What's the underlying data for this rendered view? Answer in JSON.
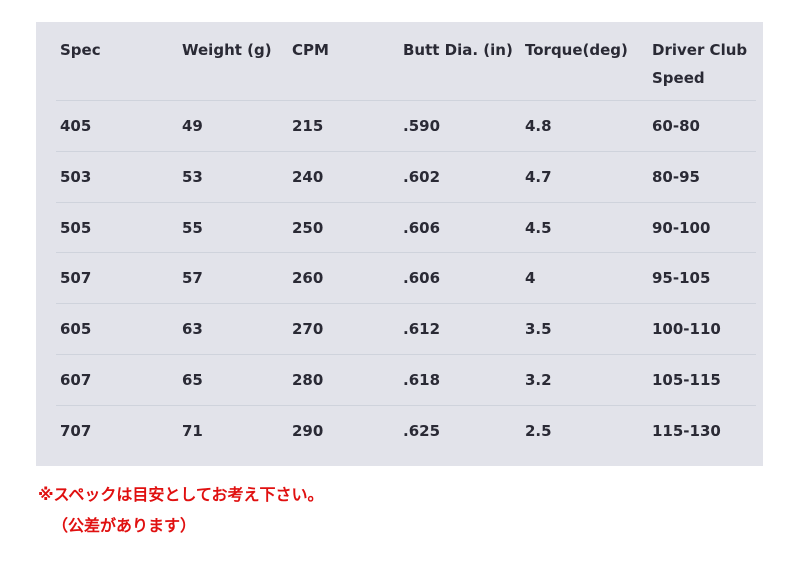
{
  "table": {
    "headers": [
      "Spec",
      "Weight (g)",
      "CPM",
      "Butt Dia. (in)",
      "Torque(deg)",
      "Driver Club Speed"
    ],
    "rows": [
      [
        "405",
        "49",
        "215",
        ".590",
        "4.8",
        "60-80"
      ],
      [
        "503",
        "53",
        "240",
        ".602",
        "4.7",
        "80-95"
      ],
      [
        "505",
        "55",
        "250",
        ".606",
        "4.5",
        "90-100"
      ],
      [
        "507",
        "57",
        "260",
        ".606",
        "4",
        "95-105"
      ],
      [
        "605",
        "63",
        "270",
        ".612",
        "3.5",
        "100-110"
      ],
      [
        "607",
        "65",
        "280",
        ".618",
        "3.2",
        "105-115"
      ],
      [
        "707",
        "71",
        "290",
        ".625",
        "2.5",
        "115-130"
      ]
    ]
  },
  "notes": {
    "line1": "※スペックは目安としてお考え下さい。",
    "line2": "（公差があります）"
  },
  "colors": {
    "table_bg": "#e2e3ea",
    "note": "#e01010"
  }
}
